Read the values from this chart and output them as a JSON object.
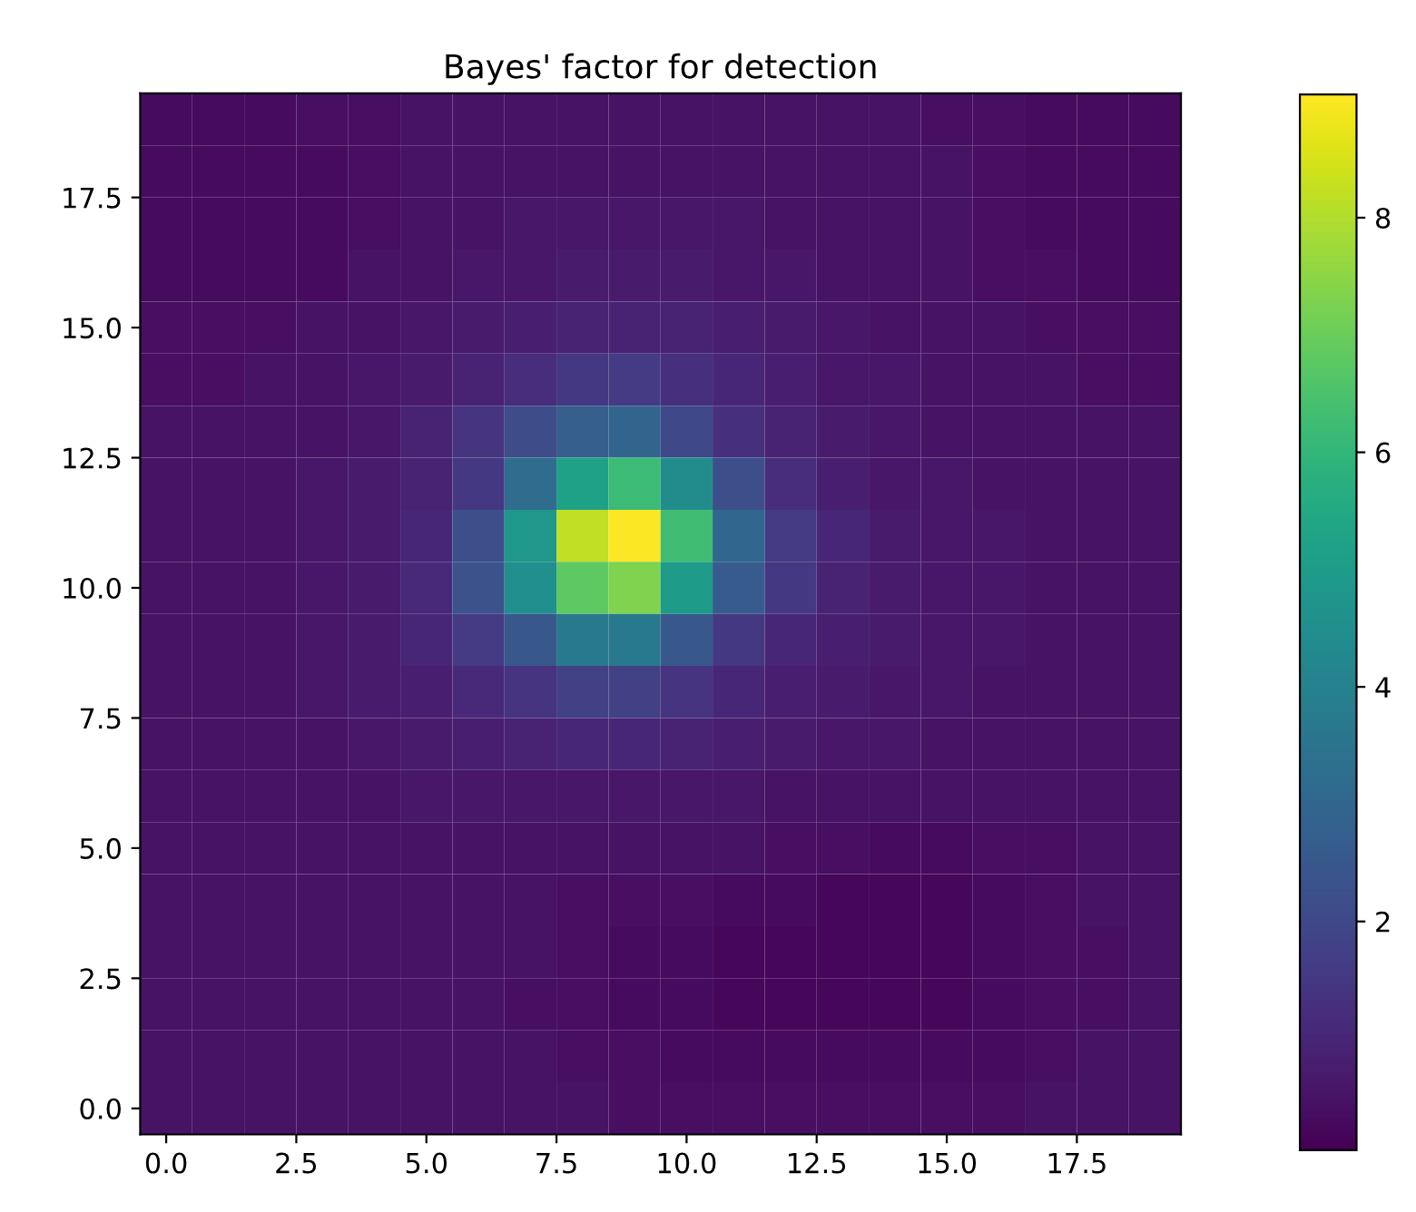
{
  "chart_data": {
    "type": "heatmap",
    "title": "Bayes' factor for detection",
    "x": [
      0,
      1,
      2,
      3,
      4,
      5,
      6,
      7,
      8,
      9,
      10,
      11,
      12,
      13,
      14,
      15,
      16,
      17,
      18,
      19
    ],
    "y": [
      19,
      18,
      17,
      16,
      15,
      14,
      13,
      12,
      11,
      10,
      9,
      8,
      7,
      6,
      5,
      4,
      3,
      2,
      1,
      0
    ],
    "xlim": [
      -0.5,
      19.5
    ],
    "ylim": [
      -0.5,
      19.5
    ],
    "xticks": [
      {
        "value": 0,
        "label": "0.0"
      },
      {
        "value": 2.5,
        "label": "2.5"
      },
      {
        "value": 5,
        "label": "5.0"
      },
      {
        "value": 7.5,
        "label": "7.5"
      },
      {
        "value": 10,
        "label": "10.0"
      },
      {
        "value": 12.5,
        "label": "12.5"
      },
      {
        "value": 15,
        "label": "15.0"
      },
      {
        "value": 17.5,
        "label": "17.5"
      }
    ],
    "yticks": [
      {
        "value": 0,
        "label": "0.0"
      },
      {
        "value": 2.5,
        "label": "2.5"
      },
      {
        "value": 5,
        "label": "5.0"
      },
      {
        "value": 7.5,
        "label": "7.5"
      },
      {
        "value": 10,
        "label": "10.0"
      },
      {
        "value": 12.5,
        "label": "12.5"
      },
      {
        "value": 15,
        "label": "15.0"
      },
      {
        "value": 17.5,
        "label": "17.5"
      }
    ],
    "clim": [
      0.05,
      9.05
    ],
    "cticks": [
      2,
      4,
      6,
      8
    ],
    "cells": [
      [
        0.3,
        0.3,
        0.3,
        0.4,
        0.4,
        0.5,
        0.5,
        0.5,
        0.5,
        0.5,
        0.5,
        0.5,
        0.5,
        0.5,
        0.5,
        0.4,
        0.4,
        0.3,
        0.3,
        0.3
      ],
      [
        0.3,
        0.3,
        0.3,
        0.3,
        0.4,
        0.5,
        0.5,
        0.5,
        0.5,
        0.5,
        0.5,
        0.5,
        0.5,
        0.5,
        0.5,
        0.5,
        0.4,
        0.3,
        0.3,
        0.3
      ],
      [
        0.3,
        0.3,
        0.3,
        0.3,
        0.4,
        0.5,
        0.5,
        0.6,
        0.6,
        0.6,
        0.6,
        0.6,
        0.5,
        0.5,
        0.5,
        0.5,
        0.4,
        0.3,
        0.3,
        0.3
      ],
      [
        0.3,
        0.3,
        0.3,
        0.3,
        0.5,
        0.5,
        0.6,
        0.6,
        0.7,
        0.7,
        0.7,
        0.6,
        0.6,
        0.5,
        0.5,
        0.5,
        0.4,
        0.4,
        0.3,
        0.3
      ],
      [
        0.4,
        0.4,
        0.4,
        0.5,
        0.5,
        0.6,
        0.7,
        0.8,
        0.9,
        0.9,
        0.9,
        0.8,
        0.7,
        0.6,
        0.5,
        0.5,
        0.5,
        0.4,
        0.4,
        0.4
      ],
      [
        0.4,
        0.4,
        0.5,
        0.5,
        0.6,
        0.7,
        0.9,
        1.2,
        1.5,
        1.6,
        1.3,
        1.0,
        0.8,
        0.6,
        0.6,
        0.5,
        0.5,
        0.5,
        0.4,
        0.4
      ],
      [
        0.5,
        0.5,
        0.5,
        0.5,
        0.6,
        0.9,
        1.4,
        2.1,
        2.7,
        2.9,
        2.0,
        1.3,
        0.9,
        0.7,
        0.6,
        0.5,
        0.5,
        0.5,
        0.5,
        0.5
      ],
      [
        0.5,
        0.5,
        0.5,
        0.6,
        0.7,
        0.9,
        1.5,
        3.2,
        5.2,
        6.2,
        4.4,
        2.2,
        1.2,
        0.8,
        0.6,
        0.6,
        0.5,
        0.5,
        0.5,
        0.5
      ],
      [
        0.5,
        0.5,
        0.5,
        0.6,
        0.7,
        1.0,
        2.2,
        4.8,
        8.2,
        9.0,
        6.3,
        3.0,
        1.6,
        1.0,
        0.7,
        0.6,
        0.6,
        0.5,
        0.5,
        0.5
      ],
      [
        0.5,
        0.5,
        0.5,
        0.6,
        0.7,
        1.1,
        2.3,
        4.5,
        6.8,
        7.3,
        5.0,
        2.6,
        1.5,
        0.9,
        0.7,
        0.6,
        0.6,
        0.5,
        0.5,
        0.5
      ],
      [
        0.5,
        0.5,
        0.5,
        0.6,
        0.7,
        1.0,
        1.6,
        2.5,
        3.7,
        3.7,
        2.5,
        1.5,
        1.0,
        0.8,
        0.7,
        0.6,
        0.6,
        0.5,
        0.5,
        0.5
      ],
      [
        0.5,
        0.5,
        0.5,
        0.6,
        0.7,
        0.8,
        1.1,
        1.4,
        1.8,
        1.8,
        1.4,
        1.0,
        0.8,
        0.7,
        0.6,
        0.6,
        0.5,
        0.5,
        0.5,
        0.5
      ],
      [
        0.5,
        0.5,
        0.5,
        0.5,
        0.6,
        0.7,
        0.8,
        0.9,
        1.0,
        1.0,
        0.9,
        0.8,
        0.7,
        0.6,
        0.6,
        0.5,
        0.5,
        0.5,
        0.5,
        0.5
      ],
      [
        0.5,
        0.5,
        0.5,
        0.5,
        0.5,
        0.6,
        0.6,
        0.6,
        0.6,
        0.6,
        0.6,
        0.6,
        0.5,
        0.5,
        0.5,
        0.5,
        0.5,
        0.5,
        0.5,
        0.5
      ],
      [
        0.5,
        0.5,
        0.5,
        0.5,
        0.5,
        0.5,
        0.5,
        0.5,
        0.5,
        0.5,
        0.5,
        0.5,
        0.4,
        0.4,
        0.3,
        0.3,
        0.4,
        0.4,
        0.5,
        0.5
      ],
      [
        0.5,
        0.5,
        0.5,
        0.5,
        0.5,
        0.5,
        0.5,
        0.5,
        0.4,
        0.4,
        0.4,
        0.3,
        0.3,
        0.2,
        0.2,
        0.2,
        0.3,
        0.4,
        0.5,
        0.5
      ],
      [
        0.5,
        0.5,
        0.5,
        0.5,
        0.5,
        0.5,
        0.5,
        0.5,
        0.4,
        0.3,
        0.3,
        0.2,
        0.2,
        0.2,
        0.2,
        0.2,
        0.3,
        0.4,
        0.4,
        0.5
      ],
      [
        0.5,
        0.5,
        0.5,
        0.5,
        0.5,
        0.5,
        0.5,
        0.4,
        0.4,
        0.3,
        0.3,
        0.2,
        0.2,
        0.2,
        0.2,
        0.2,
        0.3,
        0.4,
        0.4,
        0.5
      ],
      [
        0.5,
        0.5,
        0.5,
        0.5,
        0.5,
        0.5,
        0.5,
        0.5,
        0.4,
        0.4,
        0.3,
        0.3,
        0.3,
        0.3,
        0.3,
        0.3,
        0.3,
        0.4,
        0.5,
        0.5
      ],
      [
        0.5,
        0.5,
        0.5,
        0.5,
        0.5,
        0.5,
        0.5,
        0.5,
        0.5,
        0.4,
        0.4,
        0.4,
        0.4,
        0.4,
        0.4,
        0.4,
        0.4,
        0.5,
        0.5,
        0.5
      ]
    ]
  }
}
